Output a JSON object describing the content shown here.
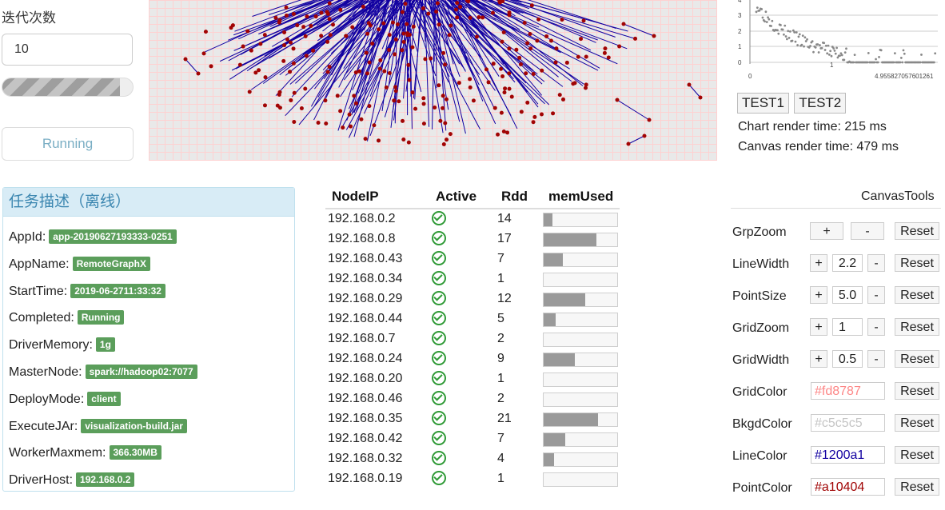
{
  "controls": {
    "iter_label": "迭代次数",
    "iter_value": "10",
    "progress": 0.9,
    "run_label": "Running"
  },
  "graph": {
    "line_color": "#1200a1",
    "point_color": "#a10404",
    "grid_color": "#fd8787",
    "bkgd_color": "#c5c5c5"
  },
  "scatter": {
    "y_ticks": [
      "4",
      "3",
      "2",
      "1",
      "0"
    ],
    "x_ticks": [
      "0",
      "1",
      "4.955827057601261"
    ],
    "buttons": [
      "TEST1",
      "TEST2"
    ],
    "chart_render": "Chart render time: 215 ms",
    "canvas_render": "Canvas render time: 479 ms"
  },
  "task": {
    "title": "任务描述（离线）",
    "rows": [
      {
        "label": "AppId:",
        "value": "app-20190627193333-0251"
      },
      {
        "label": "AppName:",
        "value": "RemoteGraphX"
      },
      {
        "label": "StartTime:",
        "value": "2019-06-2711:33:32"
      },
      {
        "label": "Completed:",
        "value": "Running"
      },
      {
        "label": "DriverMemory:",
        "value": "1g"
      },
      {
        "label": "MasterNode:",
        "value": "spark://hadoop02:7077"
      },
      {
        "label": "DeployMode:",
        "value": "client"
      },
      {
        "label": "ExecuteJAr:",
        "value": "visualization-build.jar"
      },
      {
        "label": "WorkerMaxmem:",
        "value": "366.30MB"
      },
      {
        "label": "DriverHost:",
        "value": "192.168.0.2"
      }
    ]
  },
  "nodes": {
    "headers": [
      "NodeIP",
      "Active",
      "Rdd",
      "memUsed"
    ],
    "rows": [
      {
        "ip": "192.168.0.2",
        "rdd": "14",
        "mem": 0.12
      },
      {
        "ip": "192.168.0.8",
        "rdd": "17",
        "mem": 0.72
      },
      {
        "ip": "192.168.0.43",
        "rdd": "7",
        "mem": 0.26
      },
      {
        "ip": "192.168.0.34",
        "rdd": "1",
        "mem": 0.0
      },
      {
        "ip": "192.168.0.29",
        "rdd": "12",
        "mem": 0.56
      },
      {
        "ip": "192.168.0.44",
        "rdd": "5",
        "mem": 0.16
      },
      {
        "ip": "192.168.0.7",
        "rdd": "2",
        "mem": 0.0
      },
      {
        "ip": "192.168.0.24",
        "rdd": "9",
        "mem": 0.42
      },
      {
        "ip": "192.168.0.20",
        "rdd": "1",
        "mem": 0.0
      },
      {
        "ip": "192.168.0.46",
        "rdd": "2",
        "mem": 0.0
      },
      {
        "ip": "192.168.0.35",
        "rdd": "21",
        "mem": 0.74
      },
      {
        "ip": "192.168.0.42",
        "rdd": "7",
        "mem": 0.29
      },
      {
        "ip": "192.168.0.32",
        "rdd": "4",
        "mem": 0.14
      },
      {
        "ip": "192.168.0.19",
        "rdd": "1",
        "mem": 0.0
      }
    ]
  },
  "tools": {
    "title": "CanvasTools",
    "plus": "+",
    "minus": "-",
    "reset": "Reset",
    "grp_zoom": "GrpZoom",
    "line_width": {
      "label": "LineWidth",
      "value": "2.2"
    },
    "point_size": {
      "label": "PointSize",
      "value": "5.0"
    },
    "grid_zoom": {
      "label": "GridZoom",
      "value": "1"
    },
    "grid_width": {
      "label": "GridWidth",
      "value": "0.5"
    },
    "grid_color": {
      "label": "GridColor",
      "value": "#fd8787"
    },
    "bkgd_color": {
      "label": "BkgdColor",
      "value": "#c5c5c5"
    },
    "line_color": {
      "label": "LineColor",
      "value": "#1200a1"
    },
    "point_color": {
      "label": "PointColor",
      "value": "#a10404"
    }
  }
}
